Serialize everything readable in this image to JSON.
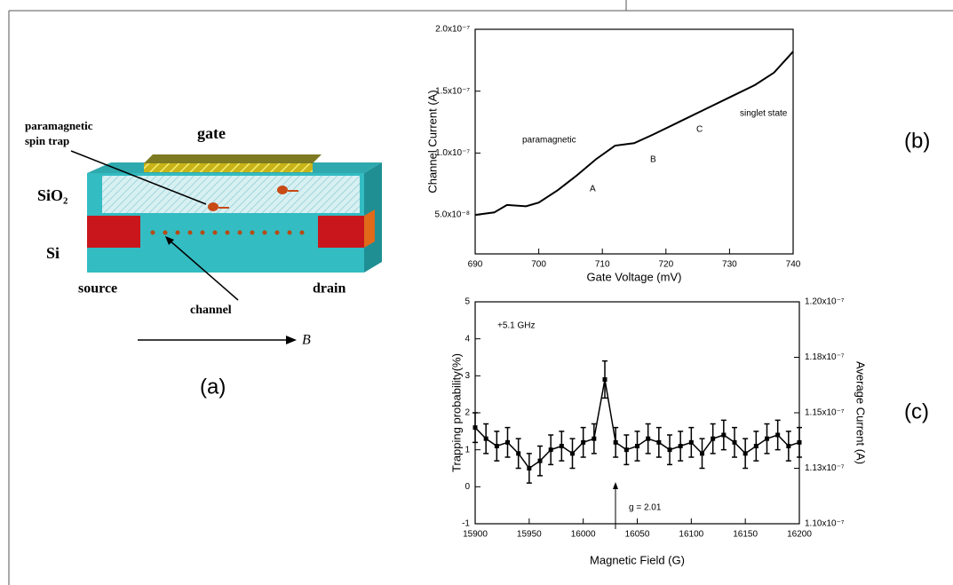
{
  "diagram": {
    "labels": {
      "trap_1": "paramagnetic",
      "trap_2": "spin trap",
      "gate": "gate",
      "oxide": "SiO₂",
      "substrate": "Si",
      "source": "source",
      "drain": "drain",
      "channel": "channel",
      "field": "B"
    },
    "panel": "(a)"
  },
  "chart_data": [
    {
      "type": "line",
      "panel": "(b)",
      "xlabel": "Gate Voltage (mV)",
      "ylabel": "Channel Current (A)",
      "color": "#000000",
      "x": [
        690,
        693,
        695,
        698,
        700,
        703,
        706,
        709,
        712,
        715,
        718,
        722,
        726,
        730,
        734,
        737,
        740
      ],
      "values": [
        5e-08,
        5.2e-08,
        5.8e-08,
        5.7e-08,
        6e-08,
        7e-08,
        8.2e-08,
        9.5e-08,
        1.06e-07,
        1.08e-07,
        1.15e-07,
        1.25e-07,
        1.35e-07,
        1.45e-07,
        1.55e-07,
        1.65e-07,
        1.82e-07
      ],
      "xlim": [
        690,
        740
      ],
      "xticks": [
        690,
        700,
        710,
        720,
        730,
        740
      ],
      "ylim": [
        1.85e-08,
        2e-07
      ],
      "yticks": [
        {
          "value": 5e-08,
          "label": "5.0x10⁻⁸"
        },
        {
          "value": 1e-07,
          "label": "1.0x10⁻⁷"
        },
        {
          "value": 1.5e-07,
          "label": "1.5x10⁻⁷"
        },
        {
          "value": 2e-07,
          "label": "2.0x10⁻⁷"
        }
      ],
      "annotations": [
        "paramagnetic",
        "singlet state",
        "A",
        "B",
        "C"
      ]
    },
    {
      "type": "errorbar",
      "panel": "(c)",
      "xlabel": "Magnetic Field (G)",
      "ylabel": "Trapping probability(%)",
      "y2label": "Average Current (A)",
      "color": "#000000",
      "x": [
        15900,
        15910,
        15920,
        15930,
        15940,
        15950,
        15960,
        15970,
        15980,
        15990,
        16000,
        16010,
        16020,
        16030,
        16040,
        16050,
        16060,
        16070,
        16080,
        16090,
        16100,
        16110,
        16120,
        16130,
        16140,
        16150,
        16160,
        16170,
        16180,
        16190,
        16200
      ],
      "values": [
        1.6,
        1.3,
        1.1,
        1.2,
        0.9,
        0.5,
        0.7,
        1.0,
        1.1,
        0.9,
        1.2,
        1.3,
        2.9,
        1.2,
        1.0,
        1.1,
        1.3,
        1.2,
        1.0,
        1.1,
        1.2,
        0.9,
        1.3,
        1.4,
        1.2,
        0.9,
        1.1,
        1.3,
        1.4,
        1.1,
        1.2
      ],
      "errors": [
        0.4,
        0.4,
        0.4,
        0.4,
        0.4,
        0.4,
        0.4,
        0.4,
        0.4,
        0.4,
        0.4,
        0.4,
        0.5,
        0.4,
        0.4,
        0.4,
        0.4,
        0.4,
        0.4,
        0.4,
        0.4,
        0.4,
        0.4,
        0.4,
        0.4,
        0.4,
        0.4,
        0.4,
        0.4,
        0.4,
        0.4
      ],
      "xlim": [
        15900,
        16200
      ],
      "xticks": [
        15900,
        15950,
        16000,
        16050,
        16100,
        16150,
        16200
      ],
      "ylim": [
        -1,
        5
      ],
      "yticks": [
        -1,
        0,
        1,
        2,
        3,
        4,
        5
      ],
      "y2lim": [
        1.1e-07,
        1.2e-07
      ],
      "y2ticks": [
        {
          "value": 1.1e-07,
          "label": "1.10x10⁻⁷"
        },
        {
          "value": 1.125e-07,
          "label": "1.13x10⁻⁷"
        },
        {
          "value": 1.15e-07,
          "label": "1.15x10⁻⁷"
        },
        {
          "value": 1.175e-07,
          "label": "1.18x10⁻⁷"
        },
        {
          "value": 1.2e-07,
          "label": "1.20x10⁻⁷"
        }
      ],
      "annotations": [
        "+5.1 GHz",
        "g = 2.01"
      ]
    }
  ]
}
